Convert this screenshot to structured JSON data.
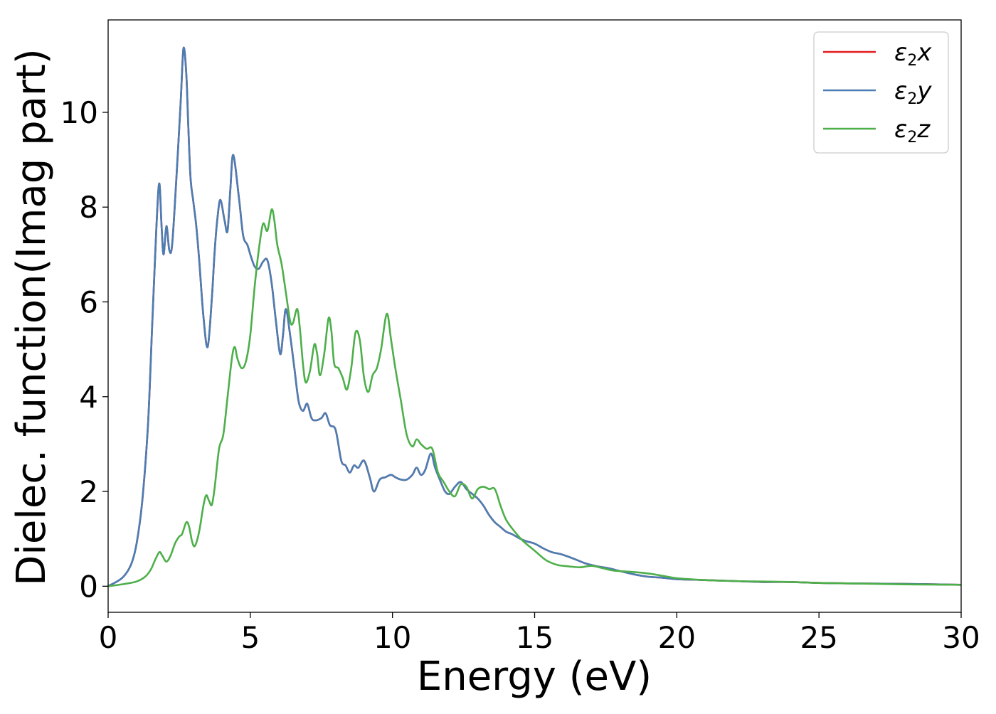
{
  "chart_data": {
    "type": "line",
    "title": "",
    "xlabel": "Energy (eV)",
    "ylabel": "Dielec. function(Imag part)",
    "xlim": [
      0,
      30
    ],
    "ylim": [
      -0.55,
      11.95
    ],
    "grid": false,
    "legend_position": "top-right",
    "x_ticks": [
      0,
      5,
      10,
      15,
      20,
      25,
      30
    ],
    "y_ticks": [
      0,
      2,
      4,
      6,
      8,
      10
    ],
    "x_tick_labels": [
      "0",
      "5",
      "10",
      "15",
      "20",
      "25",
      "30"
    ],
    "y_tick_labels": [
      "0",
      "2",
      "4",
      "6",
      "8",
      "10"
    ],
    "series": [
      {
        "name": "ε2x",
        "legend_base": "ε",
        "legend_sub": "2",
        "legend_suffix": "x",
        "color": "#e41a1c",
        "x": [
          0,
          0.5,
          0.8,
          1.0,
          1.2,
          1.4,
          1.55,
          1.7,
          1.8,
          1.88,
          1.95,
          2.05,
          2.15,
          2.25,
          2.4,
          2.55,
          2.65,
          2.75,
          2.82,
          2.9,
          3.0,
          3.1,
          3.2,
          3.35,
          3.5,
          3.65,
          3.75,
          3.85,
          3.95,
          4.1,
          4.2,
          4.3,
          4.4,
          4.6,
          4.75,
          4.9,
          5.0,
          5.15,
          5.3,
          5.45,
          5.6,
          5.75,
          5.9,
          6.05,
          6.15,
          6.25,
          6.4,
          6.55,
          6.7,
          6.85,
          7.0,
          7.15,
          7.3,
          7.5,
          7.65,
          7.8,
          8.0,
          8.2,
          8.35,
          8.5,
          8.65,
          8.8,
          9.0,
          9.2,
          9.35,
          9.55,
          9.75,
          9.95,
          10.1,
          10.3,
          10.5,
          10.7,
          10.85,
          11.0,
          11.15,
          11.35,
          11.5,
          11.7,
          11.85,
          12.0,
          12.2,
          12.4,
          12.6,
          12.8,
          13.0,
          13.2,
          13.4,
          13.6,
          13.8,
          14.0,
          14.2,
          14.5,
          14.7,
          15.0,
          15.3,
          15.6,
          15.9,
          16.2,
          16.5,
          16.8,
          17.2,
          17.6,
          18.0,
          18.5,
          19.0,
          19.5,
          20.0,
          21.0,
          22.0,
          23.0,
          24.0,
          25.0,
          26.0,
          28.0,
          30.0
        ],
        "y": [
          0,
          0.18,
          0.45,
          0.9,
          1.8,
          3.4,
          5.5,
          7.6,
          8.5,
          7.6,
          7.0,
          7.6,
          7.1,
          7.2,
          8.6,
          10.2,
          11.35,
          10.8,
          9.7,
          8.6,
          8.1,
          7.6,
          6.9,
          5.7,
          5.05,
          6.1,
          7.1,
          7.8,
          8.15,
          7.7,
          7.5,
          8.4,
          9.1,
          8.2,
          7.4,
          7.2,
          7.0,
          6.75,
          6.7,
          6.85,
          6.88,
          6.4,
          5.6,
          4.9,
          5.3,
          5.85,
          5.3,
          4.6,
          3.9,
          3.7,
          3.85,
          3.55,
          3.5,
          3.55,
          3.65,
          3.4,
          3.3,
          2.65,
          2.55,
          2.4,
          2.55,
          2.5,
          2.65,
          2.3,
          2.0,
          2.25,
          2.3,
          2.35,
          2.3,
          2.25,
          2.25,
          2.35,
          2.5,
          2.35,
          2.45,
          2.8,
          2.5,
          2.2,
          2.0,
          1.95,
          2.1,
          2.2,
          2.05,
          1.95,
          1.85,
          1.7,
          1.5,
          1.35,
          1.25,
          1.15,
          1.1,
          1.0,
          0.95,
          0.9,
          0.8,
          0.72,
          0.68,
          0.62,
          0.55,
          0.48,
          0.42,
          0.38,
          0.32,
          0.25,
          0.2,
          0.18,
          0.15,
          0.13,
          0.11,
          0.09,
          0.09,
          0.07,
          0.06,
          0.05,
          0.03
        ]
      },
      {
        "name": "ε2y",
        "legend_base": "ε",
        "legend_sub": "2",
        "legend_suffix": "y",
        "color": "#4a7eb4",
        "x": [
          0,
          0.5,
          0.8,
          1.0,
          1.2,
          1.4,
          1.55,
          1.7,
          1.8,
          1.88,
          1.95,
          2.05,
          2.15,
          2.25,
          2.4,
          2.55,
          2.65,
          2.75,
          2.82,
          2.9,
          3.0,
          3.1,
          3.2,
          3.35,
          3.5,
          3.65,
          3.75,
          3.85,
          3.95,
          4.1,
          4.2,
          4.3,
          4.4,
          4.6,
          4.75,
          4.9,
          5.0,
          5.15,
          5.3,
          5.45,
          5.6,
          5.75,
          5.9,
          6.05,
          6.15,
          6.25,
          6.4,
          6.55,
          6.7,
          6.85,
          7.0,
          7.15,
          7.3,
          7.5,
          7.65,
          7.8,
          8.0,
          8.2,
          8.35,
          8.5,
          8.65,
          8.8,
          9.0,
          9.2,
          9.35,
          9.55,
          9.75,
          9.95,
          10.1,
          10.3,
          10.5,
          10.7,
          10.85,
          11.0,
          11.15,
          11.35,
          11.5,
          11.7,
          11.85,
          12.0,
          12.2,
          12.4,
          12.6,
          12.8,
          13.0,
          13.2,
          13.4,
          13.6,
          13.8,
          14.0,
          14.2,
          14.5,
          14.7,
          15.0,
          15.3,
          15.6,
          15.9,
          16.2,
          16.5,
          16.8,
          17.2,
          17.6,
          18.0,
          18.5,
          19.0,
          19.5,
          20.0,
          21.0,
          22.0,
          23.0,
          24.0,
          25.0,
          26.0,
          28.0,
          30.0
        ],
        "y": [
          0,
          0.18,
          0.45,
          0.9,
          1.8,
          3.4,
          5.5,
          7.6,
          8.5,
          7.6,
          7.0,
          7.6,
          7.1,
          7.2,
          8.6,
          10.2,
          11.35,
          10.8,
          9.7,
          8.6,
          8.1,
          7.6,
          6.9,
          5.7,
          5.05,
          6.1,
          7.1,
          7.8,
          8.15,
          7.7,
          7.5,
          8.4,
          9.1,
          8.2,
          7.4,
          7.2,
          7.0,
          6.75,
          6.7,
          6.85,
          6.88,
          6.4,
          5.6,
          4.9,
          5.3,
          5.85,
          5.3,
          4.6,
          3.9,
          3.7,
          3.85,
          3.55,
          3.5,
          3.55,
          3.65,
          3.4,
          3.3,
          2.65,
          2.55,
          2.4,
          2.55,
          2.5,
          2.65,
          2.3,
          2.0,
          2.25,
          2.3,
          2.35,
          2.3,
          2.25,
          2.25,
          2.35,
          2.5,
          2.35,
          2.45,
          2.8,
          2.5,
          2.2,
          2.0,
          1.95,
          2.1,
          2.2,
          2.05,
          1.95,
          1.85,
          1.7,
          1.5,
          1.35,
          1.25,
          1.15,
          1.1,
          1.0,
          0.95,
          0.9,
          0.8,
          0.72,
          0.68,
          0.62,
          0.55,
          0.48,
          0.42,
          0.38,
          0.32,
          0.25,
          0.2,
          0.18,
          0.15,
          0.13,
          0.11,
          0.09,
          0.09,
          0.07,
          0.06,
          0.05,
          0.03
        ]
      },
      {
        "name": "ε2z",
        "legend_base": "ε",
        "legend_sub": "2",
        "legend_suffix": "z",
        "color": "#4daf4a",
        "x": [
          0,
          0.6,
          1.0,
          1.3,
          1.5,
          1.65,
          1.8,
          1.9,
          2.05,
          2.2,
          2.35,
          2.5,
          2.6,
          2.75,
          2.85,
          2.95,
          3.05,
          3.2,
          3.35,
          3.45,
          3.55,
          3.65,
          3.75,
          3.9,
          4.05,
          4.2,
          4.35,
          4.45,
          4.55,
          4.7,
          4.85,
          5.0,
          5.15,
          5.3,
          5.45,
          5.6,
          5.75,
          5.85,
          5.95,
          6.1,
          6.25,
          6.4,
          6.5,
          6.65,
          6.75,
          6.85,
          6.95,
          7.1,
          7.25,
          7.35,
          7.45,
          7.6,
          7.75,
          7.85,
          7.95,
          8.1,
          8.25,
          8.4,
          8.55,
          8.7,
          8.85,
          9.0,
          9.15,
          9.3,
          9.45,
          9.6,
          9.8,
          9.95,
          10.1,
          10.3,
          10.5,
          10.7,
          10.85,
          11.0,
          11.2,
          11.4,
          11.6,
          11.8,
          12.0,
          12.2,
          12.4,
          12.6,
          12.8,
          13.0,
          13.2,
          13.4,
          13.6,
          13.8,
          14.0,
          14.3,
          14.6,
          15.0,
          15.4,
          15.8,
          16.2,
          16.6,
          17.0,
          17.4,
          17.8,
          18.5,
          19.0,
          19.5,
          20.0,
          21.0,
          22.0,
          23.0,
          24.0,
          25.0,
          26.0,
          28.0,
          30.0
        ],
        "y": [
          0,
          0.05,
          0.1,
          0.2,
          0.35,
          0.55,
          0.72,
          0.65,
          0.52,
          0.65,
          0.9,
          1.05,
          1.1,
          1.35,
          1.25,
          0.95,
          0.85,
          1.15,
          1.7,
          1.92,
          1.8,
          1.72,
          2.1,
          2.9,
          3.2,
          4.0,
          4.8,
          5.05,
          4.8,
          4.6,
          4.75,
          5.3,
          6.3,
          7.1,
          7.65,
          7.5,
          7.95,
          7.7,
          7.2,
          6.8,
          6.2,
          5.6,
          5.55,
          5.85,
          5.4,
          4.7,
          4.3,
          4.55,
          5.1,
          4.9,
          4.45,
          4.9,
          5.65,
          5.4,
          4.7,
          4.6,
          4.4,
          4.15,
          4.6,
          5.35,
          5.2,
          4.4,
          4.1,
          4.45,
          4.6,
          5.0,
          5.75,
          5.2,
          4.6,
          3.9,
          3.2,
          2.95,
          3.1,
          3.0,
          2.9,
          2.9,
          2.4,
          2.2,
          2.0,
          1.9,
          2.15,
          2.1,
          1.85,
          2.05,
          2.1,
          2.05,
          2.05,
          1.7,
          1.4,
          1.15,
          0.95,
          0.75,
          0.55,
          0.45,
          0.42,
          0.4,
          0.43,
          0.38,
          0.33,
          0.3,
          0.27,
          0.22,
          0.17,
          0.13,
          0.11,
          0.1,
          0.09,
          0.07,
          0.06,
          0.04,
          0.03
        ]
      }
    ]
  }
}
